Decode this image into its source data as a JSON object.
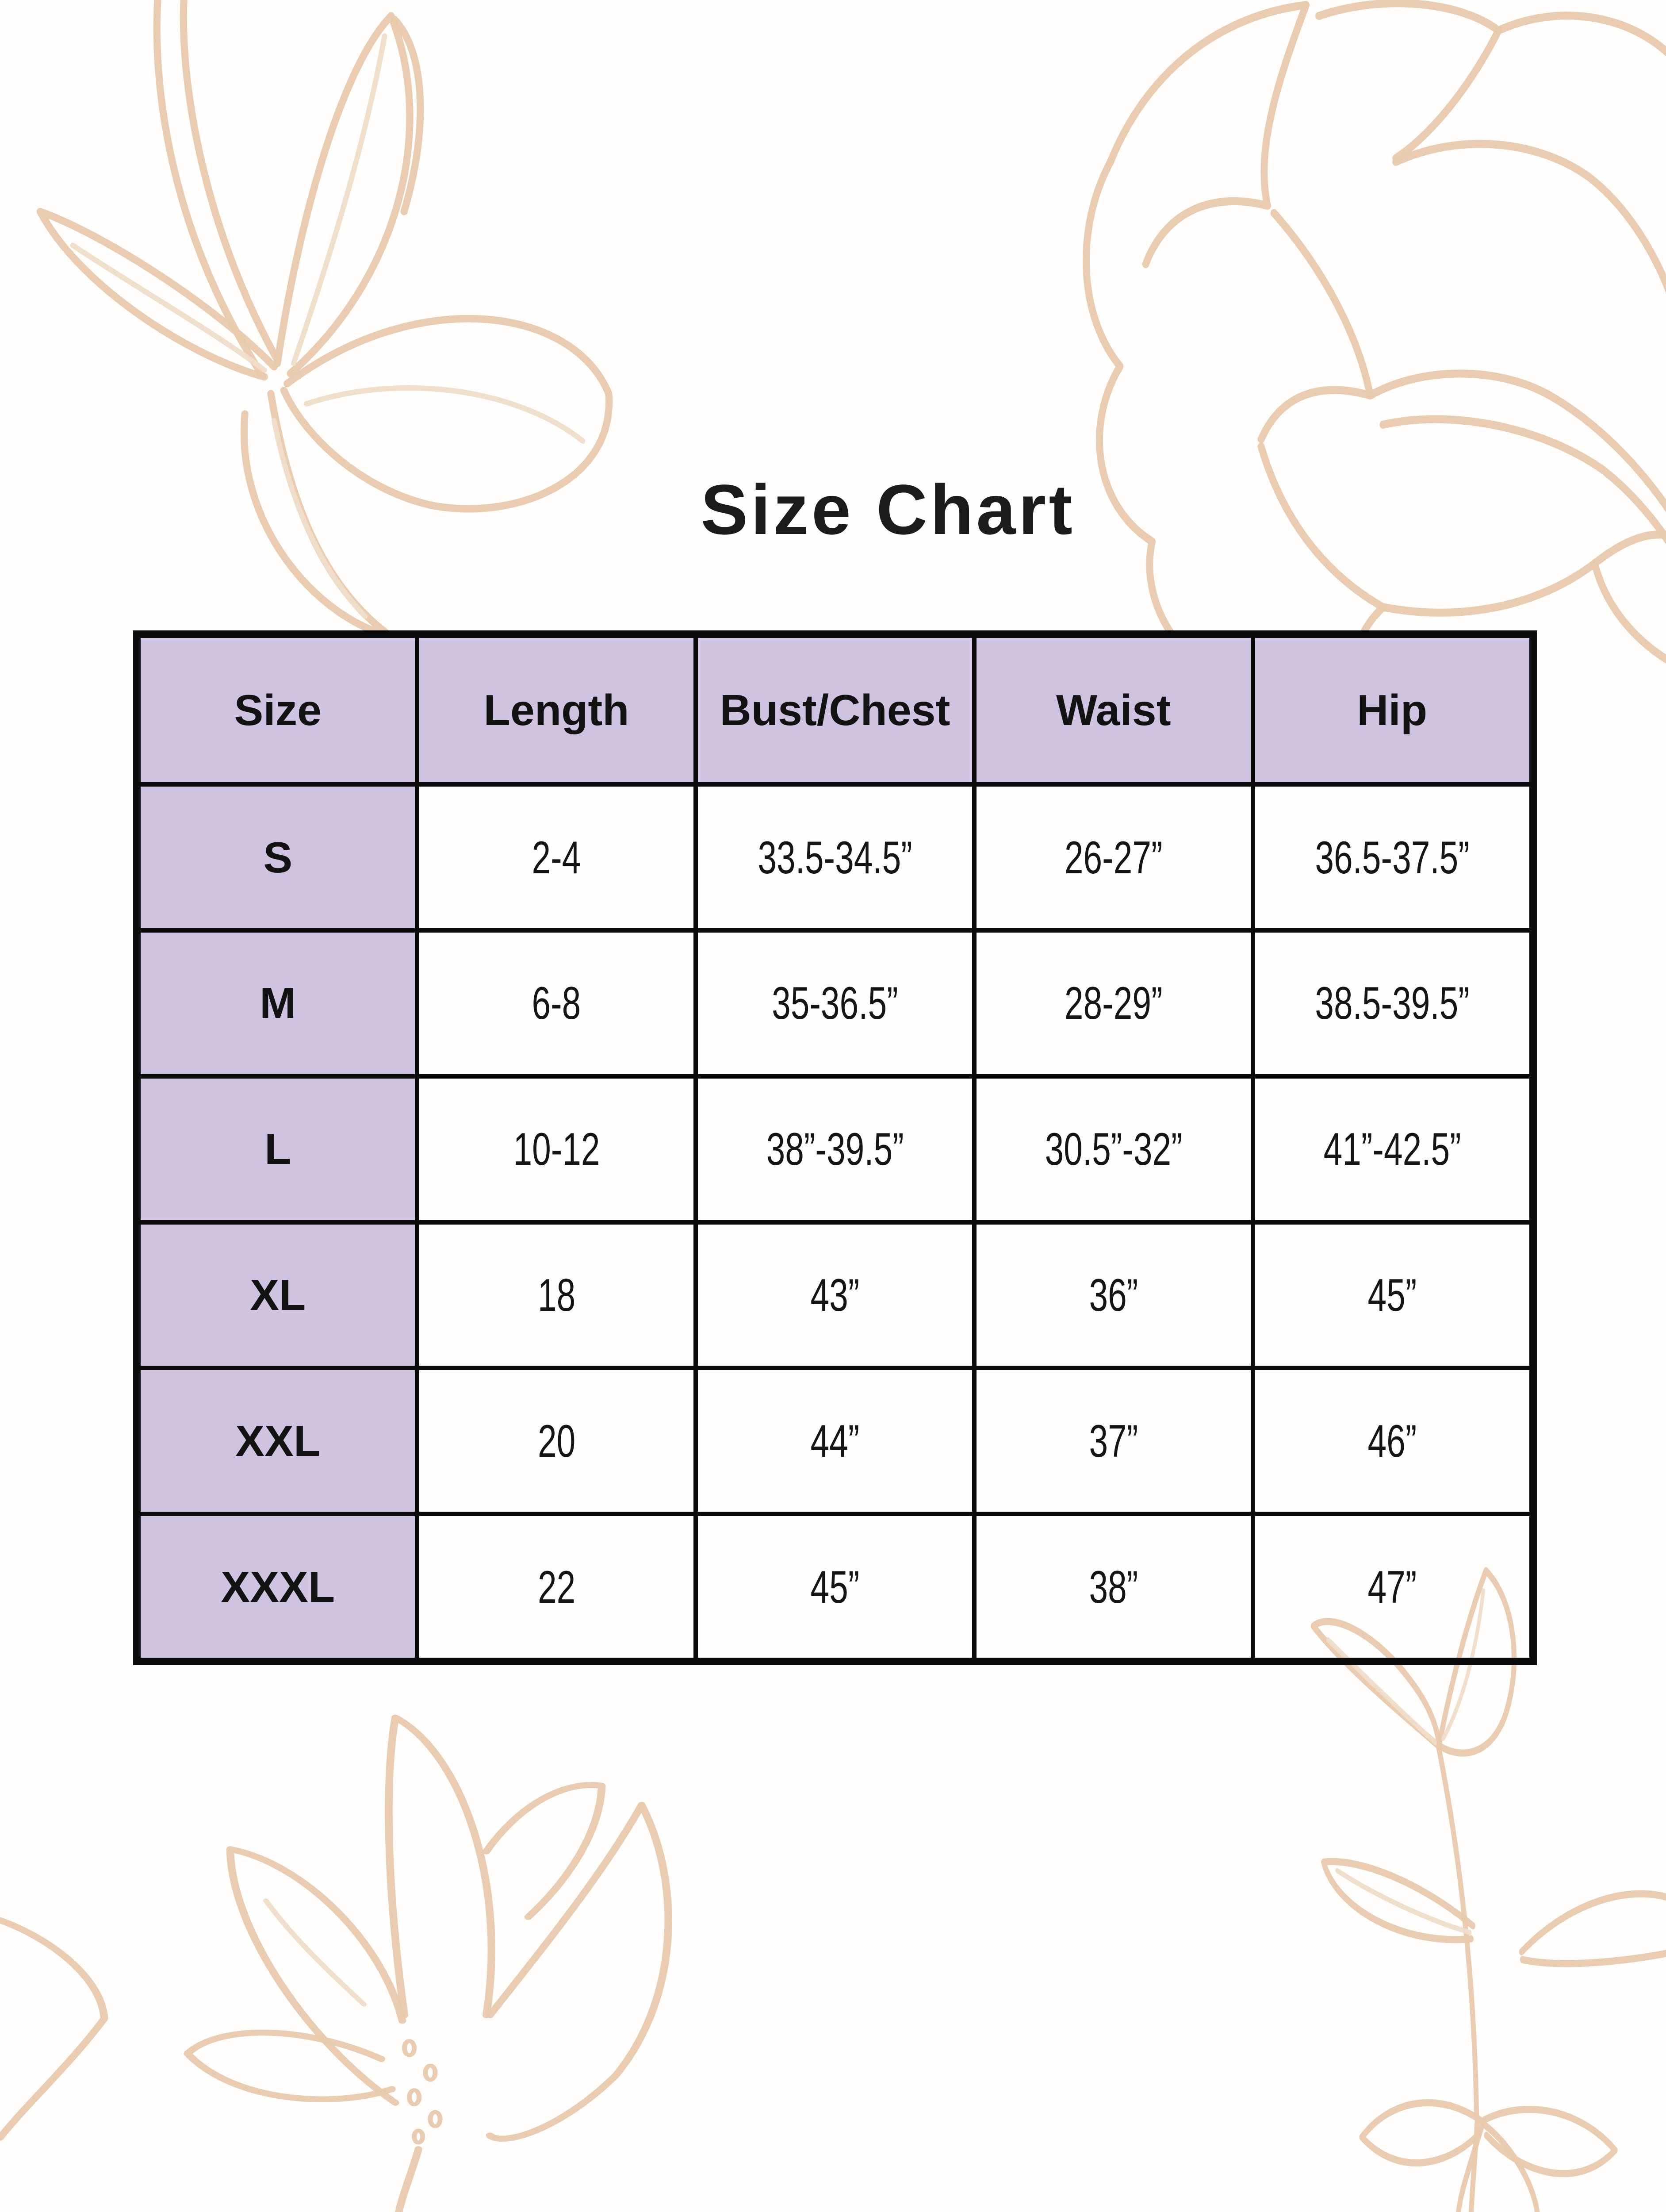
{
  "page": {
    "title": "Size Chart"
  },
  "table": {
    "columns": [
      "Size",
      "Length",
      "Bust/Chest",
      "Waist",
      "Hip"
    ],
    "rows": [
      {
        "label": "S",
        "values": [
          "2-4",
          "33.5-34.5”",
          "26-27”",
          "36.5-37.5”"
        ]
      },
      {
        "label": "M",
        "values": [
          "6-8",
          "35-36.5”",
          "28-29”",
          "38.5-39.5”"
        ]
      },
      {
        "label": "L",
        "values": [
          "10-12",
          "38”-39.5”",
          "30.5”-32”",
          "41”-42.5”"
        ]
      },
      {
        "label": "XL",
        "values": [
          "18",
          "43”",
          "36”",
          "45”"
        ]
      },
      {
        "label": "XXL",
        "values": [
          "20",
          "44”",
          "37”",
          "46”"
        ]
      },
      {
        "label": "XXXL",
        "values": [
          "22",
          "45”",
          "38”",
          "47”"
        ]
      }
    ]
  },
  "colors": {
    "accent": "#cfc3e1",
    "border": "#0b0b0b",
    "background": "#fffefd",
    "floral_line": "#e8c9ad",
    "floral_line_light": "#f0ddca"
  },
  "decorations": [
    "floral-top-left-icon",
    "floral-top-right-icon",
    "floral-bottom-left-icon",
    "floral-bottom-right-icon"
  ]
}
